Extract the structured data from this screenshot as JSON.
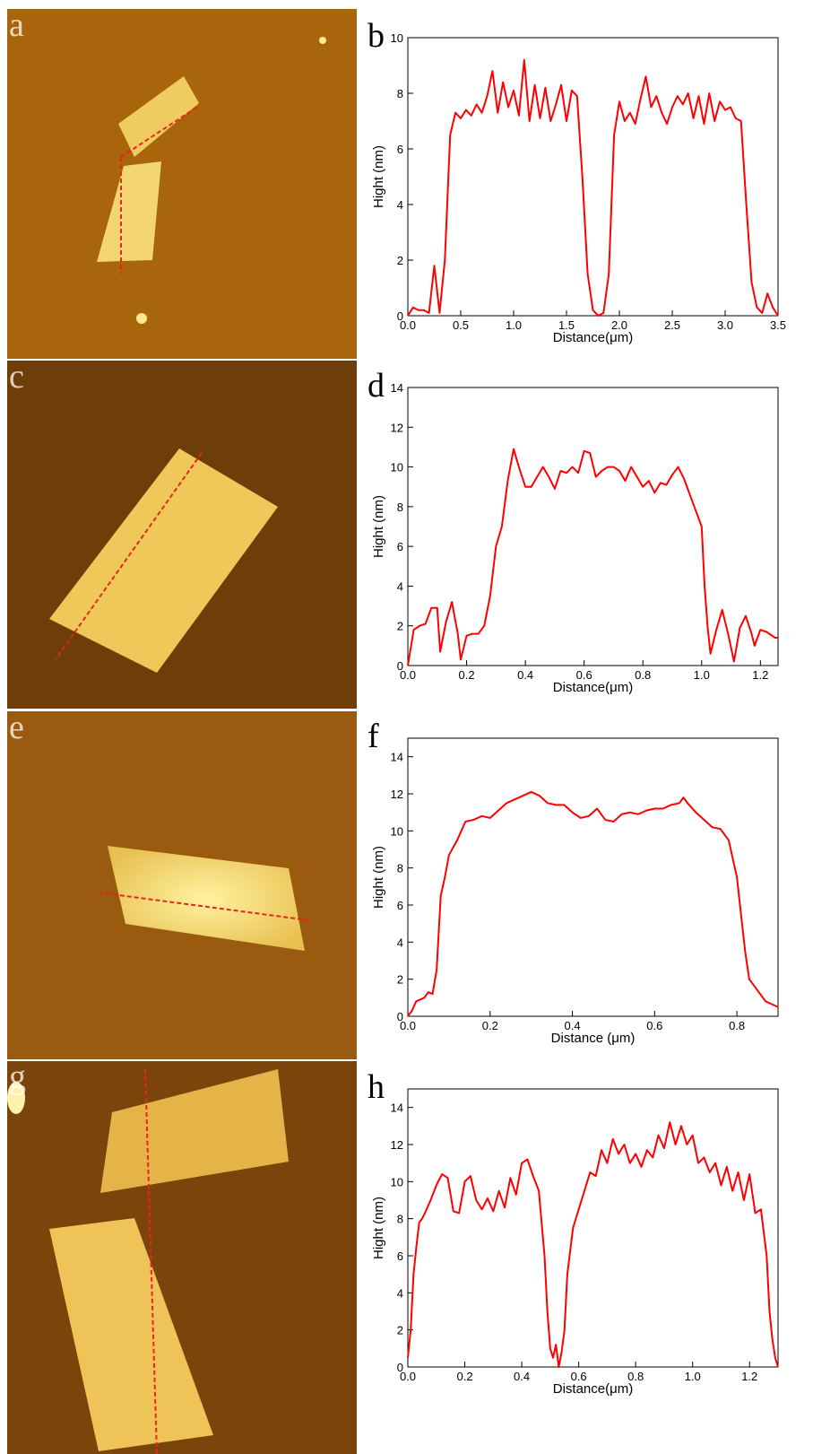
{
  "images": [
    {
      "label": "a"
    },
    {
      "label": "c"
    },
    {
      "label": "e"
    },
    {
      "label": "g"
    }
  ],
  "chart_data": [
    {
      "type": "line",
      "panel_label": "b",
      "xlabel": "Distance(μm)",
      "ylabel": "Hight (nm)",
      "color": "#ff0000",
      "xlim": [
        0,
        3.5
      ],
      "ylim": [
        0,
        10
      ],
      "xticks": [
        {
          "value": 0,
          "label": "0.0"
        },
        0.5,
        {
          "value": 1,
          "label": "1.0"
        },
        1.5,
        {
          "value": 2,
          "label": "2.0"
        },
        2.5,
        {
          "value": 3,
          "label": "3.0"
        },
        3.5
      ],
      "yticks": [
        0,
        2,
        4,
        6,
        8,
        10
      ],
      "x": [
        0,
        0.05,
        0.1,
        0.15,
        0.2,
        0.25,
        0.3,
        0.35,
        0.4,
        0.45,
        0.5,
        0.55,
        0.6,
        0.65,
        0.7,
        0.75,
        0.8,
        0.85,
        0.9,
        0.95,
        1.0,
        1.05,
        1.1,
        1.15,
        1.2,
        1.25,
        1.3,
        1.35,
        1.4,
        1.45,
        1.5,
        1.55,
        1.6,
        1.65,
        1.7,
        1.75,
        1.8,
        1.85,
        1.9,
        1.95,
        2.0,
        2.05,
        2.1,
        2.15,
        2.2,
        2.25,
        2.3,
        2.35,
        2.4,
        2.45,
        2.5,
        2.55,
        2.6,
        2.65,
        2.7,
        2.75,
        2.8,
        2.85,
        2.9,
        2.95,
        3.0,
        3.05,
        3.1,
        3.15,
        3.2,
        3.25,
        3.3,
        3.35,
        3.4,
        3.45,
        3.5
      ],
      "values": [
        0,
        0.3,
        0.2,
        0.2,
        0.1,
        1.8,
        0.1,
        2,
        6.5,
        7.3,
        7.1,
        7.4,
        7.2,
        7.6,
        7.3,
        7.9,
        8.8,
        7.3,
        8.4,
        7.5,
        8.1,
        7.2,
        9.2,
        7.0,
        8.3,
        7.1,
        8.2,
        7.0,
        7.6,
        8.3,
        7.0,
        8.1,
        7.9,
        5,
        1.5,
        0.2,
        0,
        0.1,
        1.5,
        6.5,
        7.7,
        7.0,
        7.3,
        6.9,
        7.8,
        8.6,
        7.5,
        7.9,
        7.3,
        6.9,
        7.5,
        7.9,
        7.6,
        8.0,
        7.1,
        7.9,
        6.9,
        8.0,
        7.0,
        7.7,
        7.4,
        7.5,
        7.1,
        7.0,
        4,
        1.2,
        0.3,
        0.1,
        0.8,
        0.3,
        0
      ]
    },
    {
      "type": "line",
      "panel_label": "d",
      "xlabel": "Distance(μm)",
      "ylabel": "Hight (nm)",
      "color": "#ff0000",
      "xlim": [
        0,
        1.26
      ],
      "ylim": [
        0,
        14
      ],
      "xticks": [
        {
          "value": 0,
          "label": "0.0"
        },
        0.2,
        0.4,
        0.6,
        0.8,
        {
          "value": 1,
          "label": "1.0"
        },
        1.2
      ],
      "yticks": [
        0,
        2,
        4,
        6,
        8,
        10,
        12,
        14
      ],
      "x": [
        0,
        0.02,
        0.04,
        0.06,
        0.08,
        0.1,
        0.11,
        0.13,
        0.15,
        0.17,
        0.18,
        0.2,
        0.22,
        0.24,
        0.26,
        0.28,
        0.3,
        0.32,
        0.34,
        0.36,
        0.38,
        0.4,
        0.42,
        0.44,
        0.46,
        0.48,
        0.5,
        0.52,
        0.54,
        0.56,
        0.58,
        0.6,
        0.62,
        0.64,
        0.66,
        0.68,
        0.7,
        0.72,
        0.74,
        0.76,
        0.78,
        0.8,
        0.82,
        0.84,
        0.86,
        0.88,
        0.9,
        0.92,
        0.94,
        0.96,
        0.98,
        1.0,
        1.01,
        1.02,
        1.03,
        1.05,
        1.07,
        1.09,
        1.11,
        1.13,
        1.15,
        1.17,
        1.18,
        1.2,
        1.22,
        1.25,
        1.26
      ],
      "values": [
        0,
        1.8,
        2,
        2.1,
        2.9,
        2.9,
        0.7,
        2.2,
        3.2,
        1.6,
        0.3,
        1.5,
        1.6,
        1.6,
        2,
        3.5,
        6,
        7,
        9.3,
        10.9,
        9.9,
        9,
        9,
        9.5,
        10,
        9.5,
        8.9,
        9.8,
        9.7,
        10,
        9.7,
        10.8,
        10.7,
        9.5,
        9.8,
        10,
        10,
        9.8,
        9.3,
        10,
        9.5,
        9,
        9.3,
        8.7,
        9.2,
        9.1,
        9.6,
        10,
        9.4,
        8.6,
        7.8,
        7,
        4,
        2,
        0.6,
        1.8,
        2.8,
        1.6,
        0.2,
        1.9,
        2.5,
        1.6,
        1,
        1.8,
        1.7,
        1.4,
        1.4
      ]
    },
    {
      "type": "line",
      "panel_label": "f",
      "xlabel": "Distance (μm)",
      "ylabel": "Hight (nm)",
      "color": "#ff0000",
      "xlim": [
        0,
        0.9
      ],
      "ylim": [
        0,
        15
      ],
      "xticks": [
        {
          "value": 0,
          "label": "0.0"
        },
        0.2,
        0.4,
        0.6,
        0.8
      ],
      "yticks": [
        0,
        2,
        4,
        6,
        8,
        10,
        12,
        14
      ],
      "x": [
        0,
        0.01,
        0.02,
        0.04,
        0.05,
        0.06,
        0.07,
        0.08,
        0.09,
        0.1,
        0.12,
        0.14,
        0.16,
        0.18,
        0.2,
        0.22,
        0.24,
        0.26,
        0.28,
        0.3,
        0.32,
        0.34,
        0.36,
        0.38,
        0.4,
        0.42,
        0.44,
        0.46,
        0.48,
        0.5,
        0.52,
        0.54,
        0.56,
        0.58,
        0.6,
        0.62,
        0.64,
        0.66,
        0.67,
        0.68,
        0.7,
        0.72,
        0.74,
        0.76,
        0.78,
        0.79,
        0.8,
        0.81,
        0.82,
        0.83,
        0.85,
        0.87,
        0.89,
        0.9
      ],
      "values": [
        0,
        0.3,
        0.8,
        1,
        1.3,
        1.2,
        2.5,
        6.5,
        7.5,
        8.7,
        9.5,
        10.5,
        10.6,
        10.8,
        10.7,
        11.1,
        11.5,
        11.7,
        11.9,
        12.1,
        11.9,
        11.5,
        11.4,
        11.4,
        11.0,
        10.7,
        10.8,
        11.2,
        10.6,
        10.5,
        10.9,
        11,
        10.9,
        11.1,
        11.2,
        11.2,
        11.4,
        11.5,
        11.8,
        11.5,
        11,
        10.6,
        10.2,
        10.1,
        9.5,
        8.5,
        7.5,
        5.5,
        3.5,
        2,
        1.4,
        0.8,
        0.6,
        0.5
      ]
    },
    {
      "type": "line",
      "panel_label": "h",
      "xlabel": "Distance(μm)",
      "ylabel": "Hight (nm)",
      "color": "#ff0000",
      "xlim": [
        0,
        1.3
      ],
      "ylim": [
        0,
        15
      ],
      "xticks": [
        {
          "value": 0,
          "label": "0.0"
        },
        0.2,
        0.4,
        0.6,
        0.8,
        {
          "value": 1,
          "label": "1.0"
        },
        1.2
      ],
      "yticks": [
        0,
        2,
        4,
        6,
        8,
        10,
        12,
        14
      ],
      "x": [
        0,
        0.01,
        0.02,
        0.03,
        0.04,
        0.05,
        0.06,
        0.08,
        0.1,
        0.12,
        0.14,
        0.16,
        0.18,
        0.2,
        0.22,
        0.24,
        0.26,
        0.28,
        0.3,
        0.32,
        0.34,
        0.36,
        0.38,
        0.4,
        0.42,
        0.44,
        0.46,
        0.48,
        0.49,
        0.5,
        0.51,
        0.52,
        0.53,
        0.54,
        0.55,
        0.56,
        0.58,
        0.6,
        0.62,
        0.64,
        0.66,
        0.68,
        0.7,
        0.72,
        0.74,
        0.76,
        0.78,
        0.8,
        0.82,
        0.84,
        0.86,
        0.88,
        0.9,
        0.92,
        0.94,
        0.96,
        0.98,
        1.0,
        1.02,
        1.04,
        1.06,
        1.08,
        1.1,
        1.12,
        1.14,
        1.16,
        1.18,
        1.2,
        1.22,
        1.24,
        1.26,
        1.27,
        1.28,
        1.29,
        1.3
      ],
      "values": [
        0.5,
        2,
        5,
        6.5,
        7.8,
        8,
        8.3,
        9,
        9.8,
        10.4,
        10.2,
        8.4,
        8.3,
        10,
        10.3,
        9,
        8.5,
        9.1,
        8.4,
        9.5,
        8.6,
        10.2,
        9.3,
        11,
        11.2,
        10.3,
        9.5,
        6,
        3,
        1,
        0.5,
        1.2,
        0,
        0.8,
        2,
        5,
        7.5,
        8.5,
        9.5,
        10.5,
        10.3,
        11.7,
        11,
        12.3,
        11.5,
        12,
        11,
        11.5,
        10.8,
        11.7,
        11.3,
        12.5,
        11.8,
        13.2,
        12,
        13,
        12,
        12.5,
        11,
        11.3,
        10.5,
        11,
        9.8,
        10.8,
        9.5,
        10.5,
        9,
        10.4,
        8.3,
        8.5,
        6,
        3,
        1.5,
        0.5,
        0
      ]
    }
  ]
}
